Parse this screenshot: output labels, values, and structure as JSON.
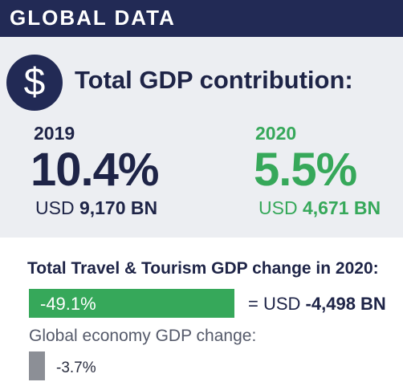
{
  "header": {
    "title": "GLOBAL DATA"
  },
  "total": {
    "icon": "dollar-icon",
    "icon_glyph": "$",
    "title": "Total GDP contribution:"
  },
  "y2019": {
    "year": "2019",
    "percent": "10.4%",
    "usd_prefix": "USD",
    "usd_value": "9,170 BN"
  },
  "y2020": {
    "year": "2020",
    "percent": "5.5%",
    "usd_prefix": "USD",
    "usd_value": "4,671 BN"
  },
  "travel": {
    "title": "Total Travel & Tourism GDP change in 2020:",
    "bar_label": "-49.1%",
    "bar_fraction": 1.0,
    "usd_prefix": "= USD",
    "usd_value": "-4,498 BN"
  },
  "global": {
    "title": "Global economy GDP change:",
    "label": "-3.7%"
  },
  "colors": {
    "navy": "#222a55",
    "green": "#36a85a",
    "gray_bar": "#8c8f96"
  }
}
